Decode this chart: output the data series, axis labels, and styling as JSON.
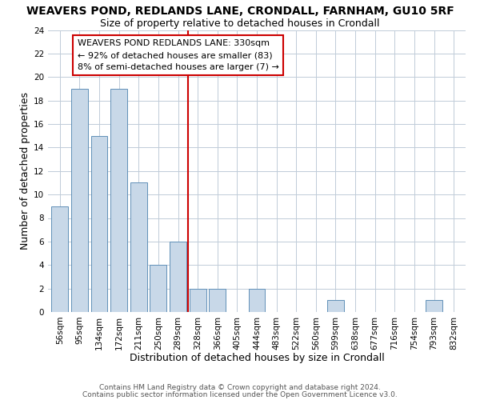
{
  "title": "WEAVERS POND, REDLANDS LANE, CRONDALL, FARNHAM, GU10 5RF",
  "subtitle": "Size of property relative to detached houses in Crondall",
  "xlabel": "Distribution of detached houses by size in Crondall",
  "ylabel": "Number of detached properties",
  "footer1": "Contains HM Land Registry data © Crown copyright and database right 2024.",
  "footer2": "Contains public sector information licensed under the Open Government Licence v3.0.",
  "bin_labels": [
    "56sqm",
    "95sqm",
    "134sqm",
    "172sqm",
    "211sqm",
    "250sqm",
    "289sqm",
    "328sqm",
    "366sqm",
    "405sqm",
    "444sqm",
    "483sqm",
    "522sqm",
    "560sqm",
    "599sqm",
    "638sqm",
    "677sqm",
    "716sqm",
    "754sqm",
    "793sqm",
    "832sqm"
  ],
  "bar_heights": [
    9,
    19,
    15,
    19,
    11,
    4,
    6,
    2,
    2,
    0,
    2,
    0,
    0,
    0,
    1,
    0,
    0,
    0,
    0,
    1,
    0
  ],
  "bar_color": "#c8d8e8",
  "bar_edge_color": "#6090b8",
  "vline_x": 6.5,
  "vline_color": "#cc0000",
  "annotation_line1": "WEAVERS POND REDLANDS LANE: 330sqm",
  "annotation_line2": "← 92% of detached houses are smaller (83)",
  "annotation_line3": "8% of semi-detached houses are larger (7) →",
  "ylim": [
    0,
    24
  ],
  "yticks": [
    0,
    2,
    4,
    6,
    8,
    10,
    12,
    14,
    16,
    18,
    20,
    22,
    24
  ],
  "title_fontsize": 10,
  "subtitle_fontsize": 9,
  "axis_label_fontsize": 9,
  "tick_fontsize": 7.5,
  "annotation_fontsize": 8,
  "footer_fontsize": 6.5,
  "background_color": "#ffffff",
  "grid_color": "#c0ccd8"
}
